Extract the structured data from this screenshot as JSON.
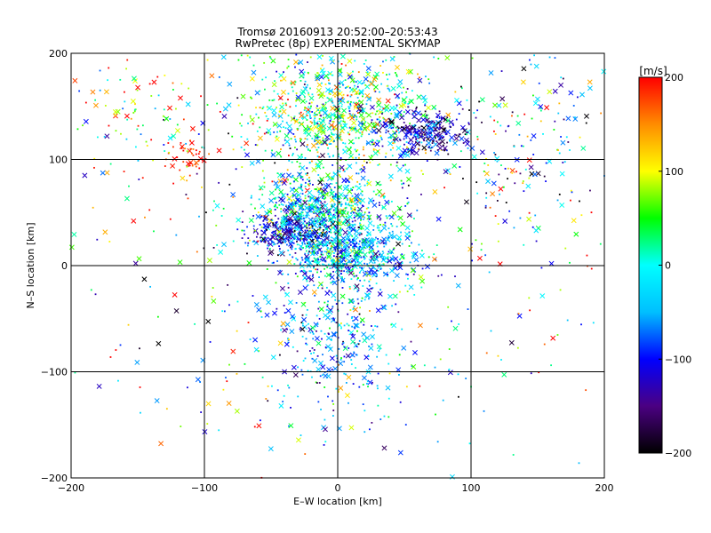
{
  "chart_data": {
    "type": "scatter",
    "title": "Tromsø 20160913 20:52:00–20:53:43",
    "subtitle": "RwPretec (8p) EXPERIMENTAL SKYMAP",
    "xlabel": "E–W location [km]",
    "ylabel": "N–S location [km]",
    "xlim": [
      -200,
      200
    ],
    "ylim": [
      -200,
      200
    ],
    "x_ticks": [
      -200,
      -100,
      0,
      100,
      200
    ],
    "y_ticks": [
      -200,
      -100,
      0,
      100,
      200
    ],
    "x_tick_labels": [
      "−200",
      "−100",
      "0",
      "100",
      "200"
    ],
    "y_tick_labels": [
      "−200",
      "−100",
      "0",
      "100",
      "200"
    ],
    "grid": true,
    "markers": [
      "cross",
      "dot"
    ],
    "colorbar": {
      "label": "[m/s]",
      "range": [
        -200,
        200
      ],
      "ticks": [
        200,
        100,
        0,
        -100,
        -200
      ],
      "tick_labels": [
        "200",
        "100",
        "0",
        "−100",
        "−200"
      ],
      "colors": [
        "#000000",
        "#4b0082",
        "#0000ff",
        "#00bfff",
        "#00ffff",
        "#00ff00",
        "#ffff00",
        "#ff8c00",
        "#ff0000"
      ]
    },
    "clusters": [
      {
        "cx": 0,
        "cy": 140,
        "sx": 35,
        "sy": 30,
        "n": 900,
        "vmean": 20,
        "vsd": 80
      },
      {
        "cx": 65,
        "cy": 125,
        "sx": 15,
        "sy": 10,
        "n": 260,
        "vmean": -130,
        "vsd": 40
      },
      {
        "cx": -110,
        "cy": 105,
        "sx": 8,
        "sy": 8,
        "n": 40,
        "vmean": 190,
        "vsd": 20
      },
      {
        "cx": -10,
        "cy": 50,
        "sx": 25,
        "sy": 18,
        "n": 700,
        "vmean": -20,
        "vsd": 70
      },
      {
        "cx": -35,
        "cy": 30,
        "sx": 15,
        "sy": 10,
        "n": 250,
        "vmean": -120,
        "vsd": 50
      },
      {
        "cx": 10,
        "cy": 10,
        "sx": 25,
        "sy": 15,
        "n": 500,
        "vmean": -40,
        "vsd": 60
      },
      {
        "cx": 0,
        "cy": -60,
        "sx": 25,
        "sy": 40,
        "n": 350,
        "vmean": -60,
        "vsd": 60
      },
      {
        "cx": -150,
        "cy": 140,
        "sx": 25,
        "sy": 30,
        "n": 90,
        "vmean": 120,
        "vsd": 100
      },
      {
        "cx": 140,
        "cy": 120,
        "sx": 35,
        "sy": 40,
        "n": 150,
        "vmean": -40,
        "vsd": 120
      },
      {
        "cx": 0,
        "cy": 0,
        "sx": 120,
        "sy": 110,
        "n": 500,
        "vmean": 0,
        "vsd": 120
      }
    ]
  }
}
